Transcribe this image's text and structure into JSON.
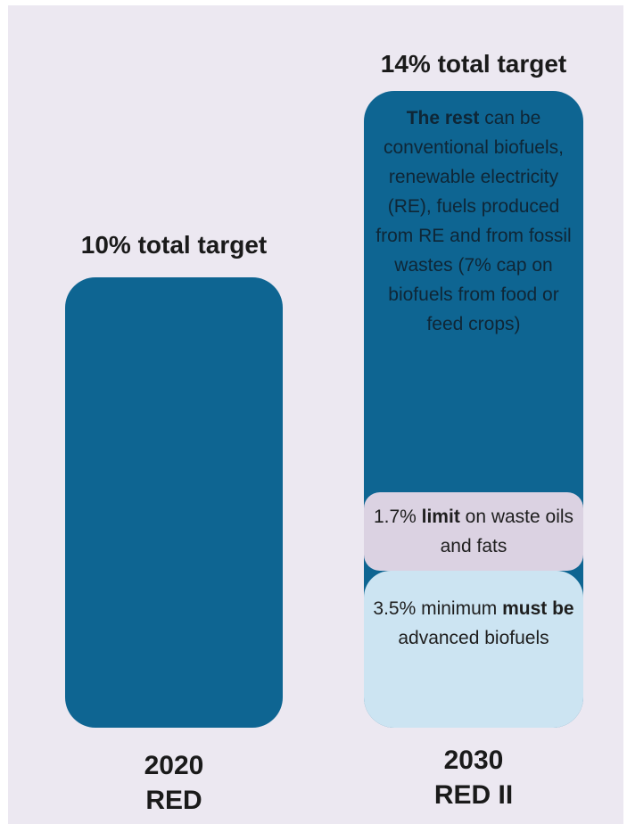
{
  "left_column": {
    "heading": "10% total target",
    "year": "2020",
    "name": "RED"
  },
  "right_column": {
    "heading": "14% total target",
    "rest_bold": "The rest",
    "rest_text": "can be conventional biofuels, renewable electricity (RE), fuels produced from RE and from fossil wastes (7% cap on biofuels from food or feed crops)",
    "limit_prefix": "1.7% ",
    "limit_bold": "limit",
    "limit_suffix": " on waste oils and fats",
    "minimum_prefix": "3.5% minimum ",
    "minimum_bold": "must be",
    "minimum_suffix": " advanced biofuels",
    "year": "2030",
    "name": "RED II"
  },
  "colors": {
    "background": "#ece8f1",
    "bar": "#0e6592",
    "limit_segment": "#dbd2e2",
    "minimum_segment": "#cce4f2"
  }
}
